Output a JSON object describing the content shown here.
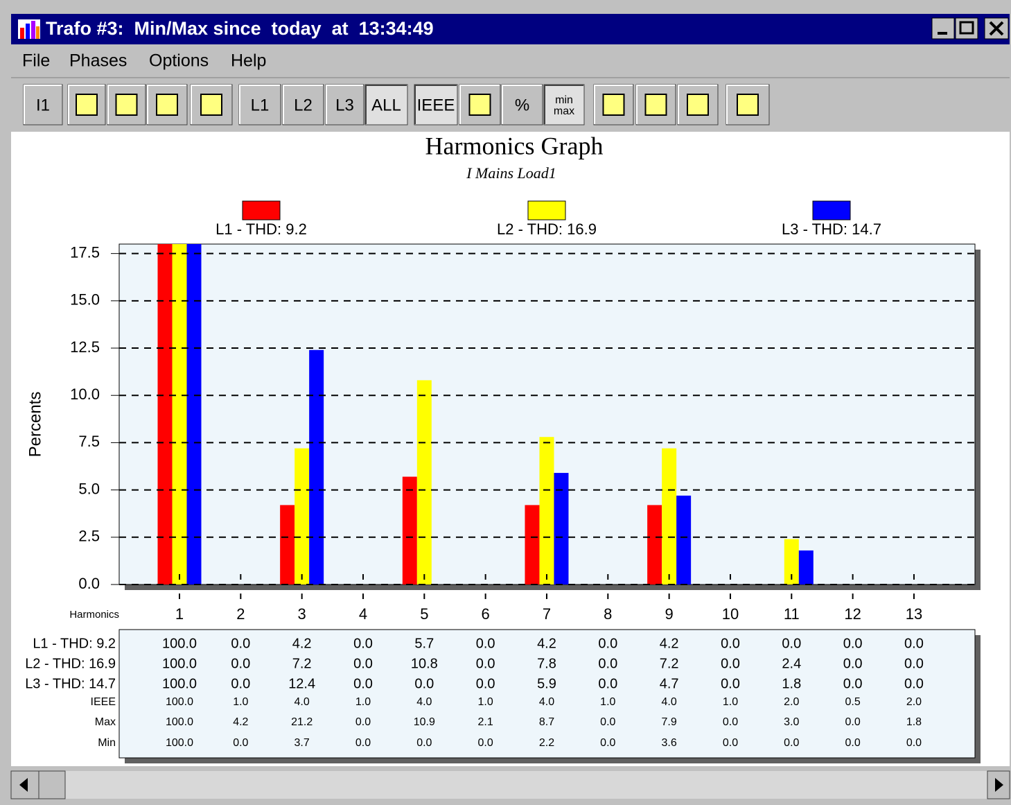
{
  "window": {
    "title": "Trafo #3:  Min/Max since  today  at  13:34:49"
  },
  "menu": [
    "File",
    "Phases",
    "Options",
    "Help"
  ],
  "toolbar": {
    "buttons": [
      "I1",
      "L1",
      "L2",
      "L3",
      "ALL",
      "IEEE",
      "%"
    ],
    "minmax": [
      "min",
      "max"
    ]
  },
  "chart_data": {
    "type": "bar",
    "title": "Harmonics Graph",
    "subtitle": "I Mains Load1",
    "y_label": "Percents",
    "x_label": "Harmonics",
    "categories": [
      "1",
      "2",
      "3",
      "4",
      "5",
      "6",
      "7",
      "8",
      "9",
      "10",
      "11",
      "12",
      "13"
    ],
    "series": [
      {
        "name": "L1 - THD: 9.2",
        "color": "#ff0000",
        "values": [
          100,
          0,
          4.2,
          0,
          5.7,
          0,
          4.2,
          0,
          4.2,
          0,
          0,
          0,
          0
        ],
        "value_labels": [
          "100.0",
          "0.0",
          "4.2",
          "0.0",
          "5.7",
          "0.0",
          "4.2",
          "0.0",
          "4.2",
          "0.0",
          "0.0",
          "0.0",
          "0.0"
        ]
      },
      {
        "name": "L2 - THD: 16.9",
        "color": "#ffff00",
        "values": [
          100,
          0,
          7.2,
          0,
          10.8,
          0,
          7.8,
          0,
          7.2,
          0,
          2.4,
          0,
          0
        ],
        "value_labels": [
          "100.0",
          "0.0",
          "7.2",
          "0.0",
          "10.8",
          "0.0",
          "7.8",
          "0.0",
          "7.2",
          "0.0",
          "2.4",
          "0.0",
          "0.0"
        ]
      },
      {
        "name": "L3 - THD: 14.7",
        "color": "#0000ff",
        "values": [
          100,
          0,
          12.4,
          0,
          0,
          0,
          5.9,
          0,
          4.7,
          0,
          1.8,
          0,
          0
        ],
        "value_labels": [
          "100.0",
          "0.0",
          "12.4",
          "0.0",
          "0.0",
          "0.0",
          "5.9",
          "0.0",
          "4.7",
          "0.0",
          "1.8",
          "0.0",
          "0.0"
        ]
      }
    ],
    "ylim": [
      0,
      18
    ],
    "yticks": [
      {
        "value": 0,
        "label": "0.0"
      },
      2.5,
      {
        "value": 5,
        "label": "5.0"
      },
      7.5,
      {
        "value": 10,
        "label": "10.0"
      },
      12.5,
      {
        "value": 15,
        "label": "15.0"
      },
      17.5
    ],
    "grid": true
  },
  "table": {
    "rows": [
      {
        "label": "IEEE",
        "cells": [
          "100.0",
          "1.0",
          "4.0",
          "1.0",
          "4.0",
          "1.0",
          "4.0",
          "1.0",
          "4.0",
          "1.0",
          "2.0",
          "0.5",
          "2.0"
        ]
      },
      {
        "label": "Max",
        "cells": [
          "100.0",
          "4.2",
          "21.2",
          "0.0",
          "10.9",
          "2.1",
          "8.7",
          "0.0",
          "7.9",
          "0.0",
          "3.0",
          "0.0",
          "1.8"
        ]
      },
      {
        "label": "Min",
        "cells": [
          "100.0",
          "0.0",
          "3.7",
          "0.0",
          "0.0",
          "0.0",
          "2.2",
          "0.0",
          "3.6",
          "0.0",
          "0.0",
          "0.0",
          "0.0"
        ]
      }
    ]
  }
}
